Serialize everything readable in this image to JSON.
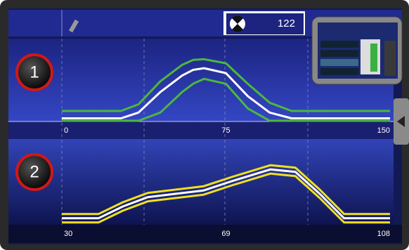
{
  "top_bar": {
    "value": "122"
  },
  "panels": [
    {
      "label": "1",
      "xlim": [
        0,
        150
      ],
      "ylim": [
        0,
        100
      ],
      "xticks": [
        0,
        75,
        150
      ],
      "x": [
        0,
        27,
        35,
        45,
        55,
        60,
        65,
        75,
        85,
        95,
        105,
        150
      ],
      "series": [
        {
          "color": "#4cb83c",
          "values": [
            12,
            12,
            20,
            48,
            68,
            74,
            75,
            70,
            45,
            22,
            12,
            12
          ]
        },
        {
          "color": "#4cb83c",
          "values": [
            0,
            0,
            0,
            10,
            35,
            45,
            51,
            45,
            15,
            0,
            0,
            0
          ]
        },
        {
          "color": "#ffffff",
          "values": [
            3,
            3,
            10,
            35,
            55,
            62,
            64,
            58,
            30,
            10,
            3,
            3
          ]
        }
      ]
    },
    {
      "label": "2",
      "xlim": [
        30,
        108
      ],
      "ylim": [
        0,
        100
      ],
      "xticks": [
        30,
        69,
        108
      ],
      "x": [
        30,
        38.7,
        44.5,
        50.4,
        57,
        63.7,
        70.4,
        79.6,
        85.5,
        91.3,
        97.1,
        108
      ],
      "series": [
        {
          "color": "#f0e020",
          "values": [
            11,
            11,
            25,
            36,
            40,
            44,
            55,
            69,
            66,
            40,
            11,
            11
          ]
        },
        {
          "color": "#f0e020",
          "values": [
            1,
            1,
            15,
            26,
            30,
            34,
            45,
            59,
            56,
            30,
            1,
            1
          ]
        },
        {
          "color": "#ffffff",
          "values": [
            6,
            6,
            20,
            31,
            35,
            39,
            50,
            64,
            61,
            35,
            6,
            6
          ]
        }
      ]
    }
  ]
}
